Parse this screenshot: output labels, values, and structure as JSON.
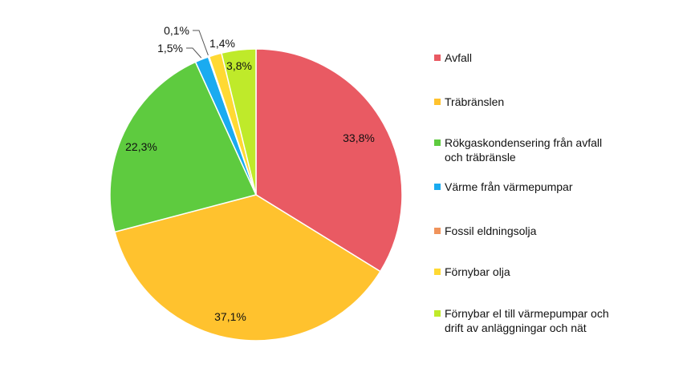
{
  "chart_data": {
    "type": "pie",
    "start": "top",
    "direction": "clockwise",
    "legend_position": "right",
    "slices": [
      {
        "label": "Avfall",
        "value": 33.8,
        "text": "33,8%",
        "color": "#E95A63"
      },
      {
        "label": "Träbränslen",
        "value": 37.1,
        "text": "37,1%",
        "color": "#FFC22E"
      },
      {
        "label": "Rökgaskondensering från avfall och träbränsle",
        "value": 22.3,
        "text": "22,3%",
        "color": "#5ECB3F"
      },
      {
        "label": "Värme från värmepumpar",
        "value": 1.5,
        "text": "1,5%",
        "color": "#1AABF0"
      },
      {
        "label": "Fossil eldningsolja",
        "value": 0.1,
        "text": "0,1%",
        "color": "#F0935B"
      },
      {
        "label": "Förnybar olja",
        "value": 1.4,
        "text": "1,4%",
        "color": "#FFD933"
      },
      {
        "label": "Förnybar el till värmepumpar och drift av anläggningar och nät",
        "value": 3.8,
        "text": "3,8%",
        "color": "#BFEA2A"
      }
    ]
  }
}
